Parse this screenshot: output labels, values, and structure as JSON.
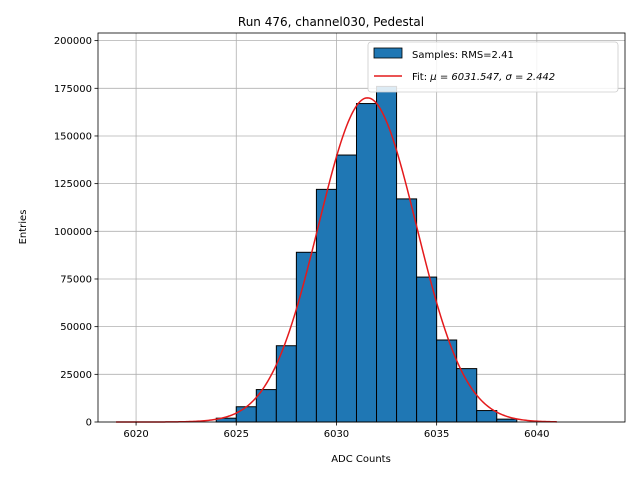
{
  "chart_data": {
    "type": "bar",
    "title": "Run 476, channel030, Pedestal",
    "xlabel": "ADC Counts",
    "ylabel": "Entries",
    "xlim": [
      6018.1,
      6044.4
    ],
    "ylim": [
      0,
      204000
    ],
    "xticks": [
      6020,
      6025,
      6030,
      6035,
      6040
    ],
    "yticks": [
      0,
      25000,
      50000,
      75000,
      100000,
      125000,
      150000,
      175000,
      200000
    ],
    "grid": true,
    "legend_position": "top-right",
    "histogram": {
      "name": "Samples: RMS=2.41",
      "color": "#1f77b4",
      "edgecolor": "#000000",
      "bin_edges": [
        6019,
        6020,
        6021,
        6022,
        6023,
        6024,
        6025,
        6026,
        6027,
        6028,
        6029,
        6030,
        6031,
        6032,
        6033,
        6034,
        6035,
        6036,
        6037,
        6038,
        6039,
        6040,
        6041,
        6042,
        6043
      ],
      "counts": [
        0,
        0,
        0,
        0,
        0,
        2000,
        8000,
        17000,
        40000,
        89000,
        122000,
        140000,
        167000,
        176000,
        117000,
        76000,
        43000,
        28000,
        6000,
        1500,
        0,
        0,
        0,
        0
      ]
    },
    "fit": {
      "name": "Fit: μ = 6031.547, σ = 2.442",
      "label_prefix": "Fit: ",
      "label_math": "μ = 6031.547, σ = 2.442",
      "color": "#e41a1c",
      "mu": 6031.547,
      "sigma": 2.442,
      "amplitude": 170000,
      "x_range": [
        6019,
        6041
      ]
    }
  }
}
